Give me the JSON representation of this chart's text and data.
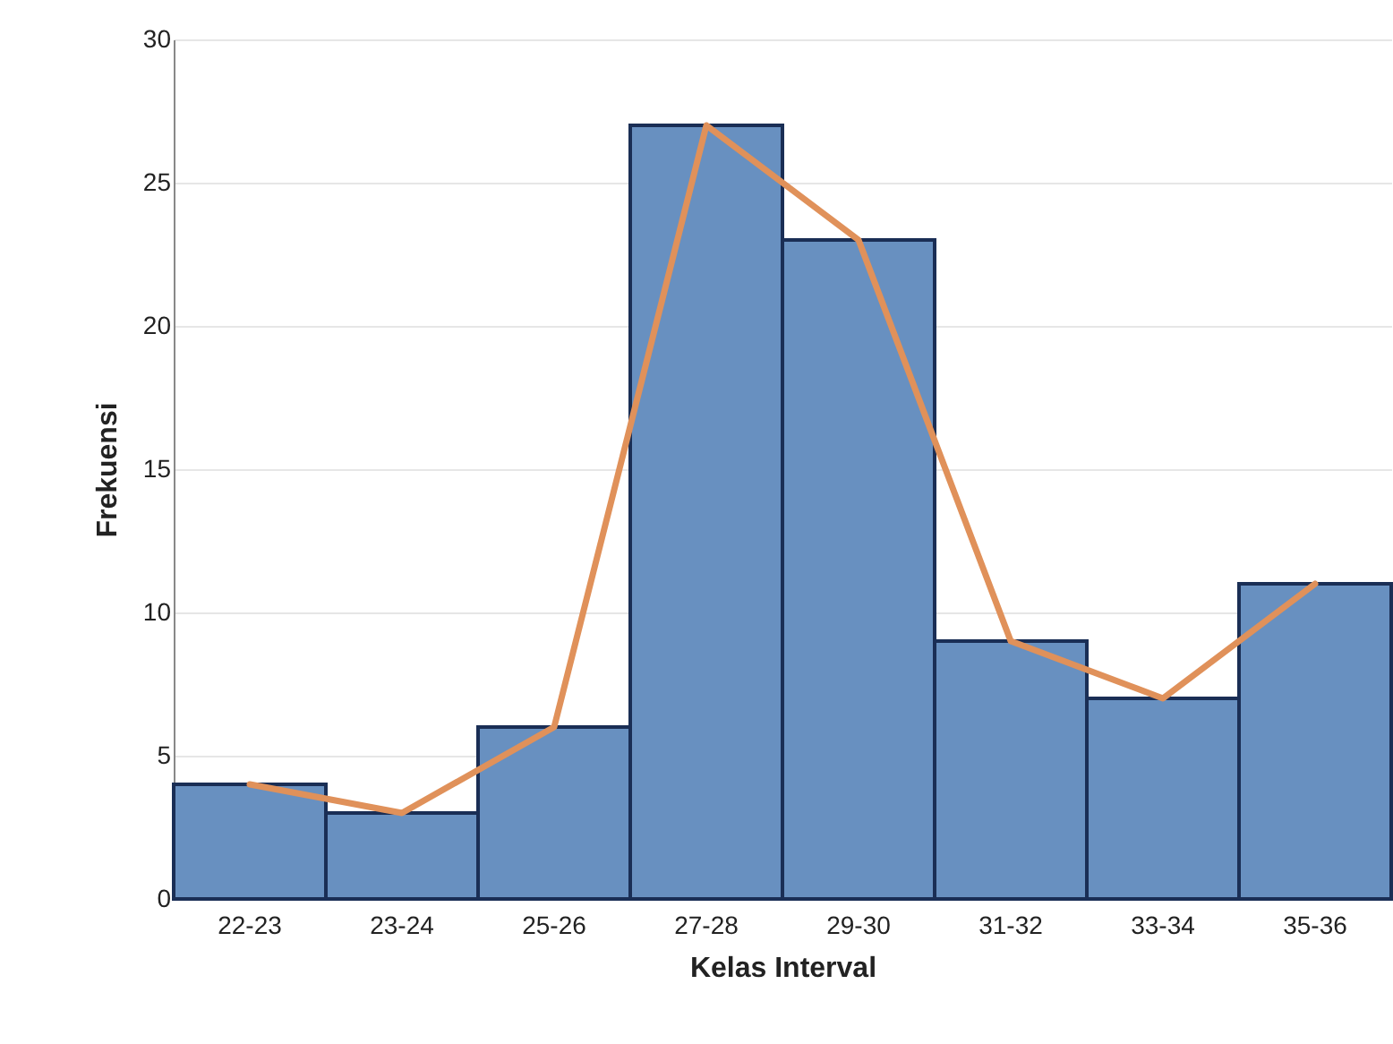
{
  "chart_data": {
    "type": "bar",
    "xlabel": "Kelas Interval",
    "ylabel": "Frekuensi",
    "categories": [
      "22-23",
      "23-24",
      "25-26",
      "27-28",
      "29-30",
      "31-32",
      "33-34",
      "35-36"
    ],
    "series": [
      {
        "type": "bar",
        "color": "#6890c0",
        "values": [
          4,
          3,
          6,
          27,
          23,
          9,
          7,
          11
        ]
      },
      {
        "type": "line",
        "color": "#e0915a",
        "values": [
          4,
          3,
          6,
          27,
          23,
          9,
          7,
          11
        ]
      }
    ],
    "ylim": [
      0,
      30
    ],
    "yticks": [
      0,
      5,
      10,
      15,
      20,
      25,
      30
    ],
    "grid": "y"
  }
}
